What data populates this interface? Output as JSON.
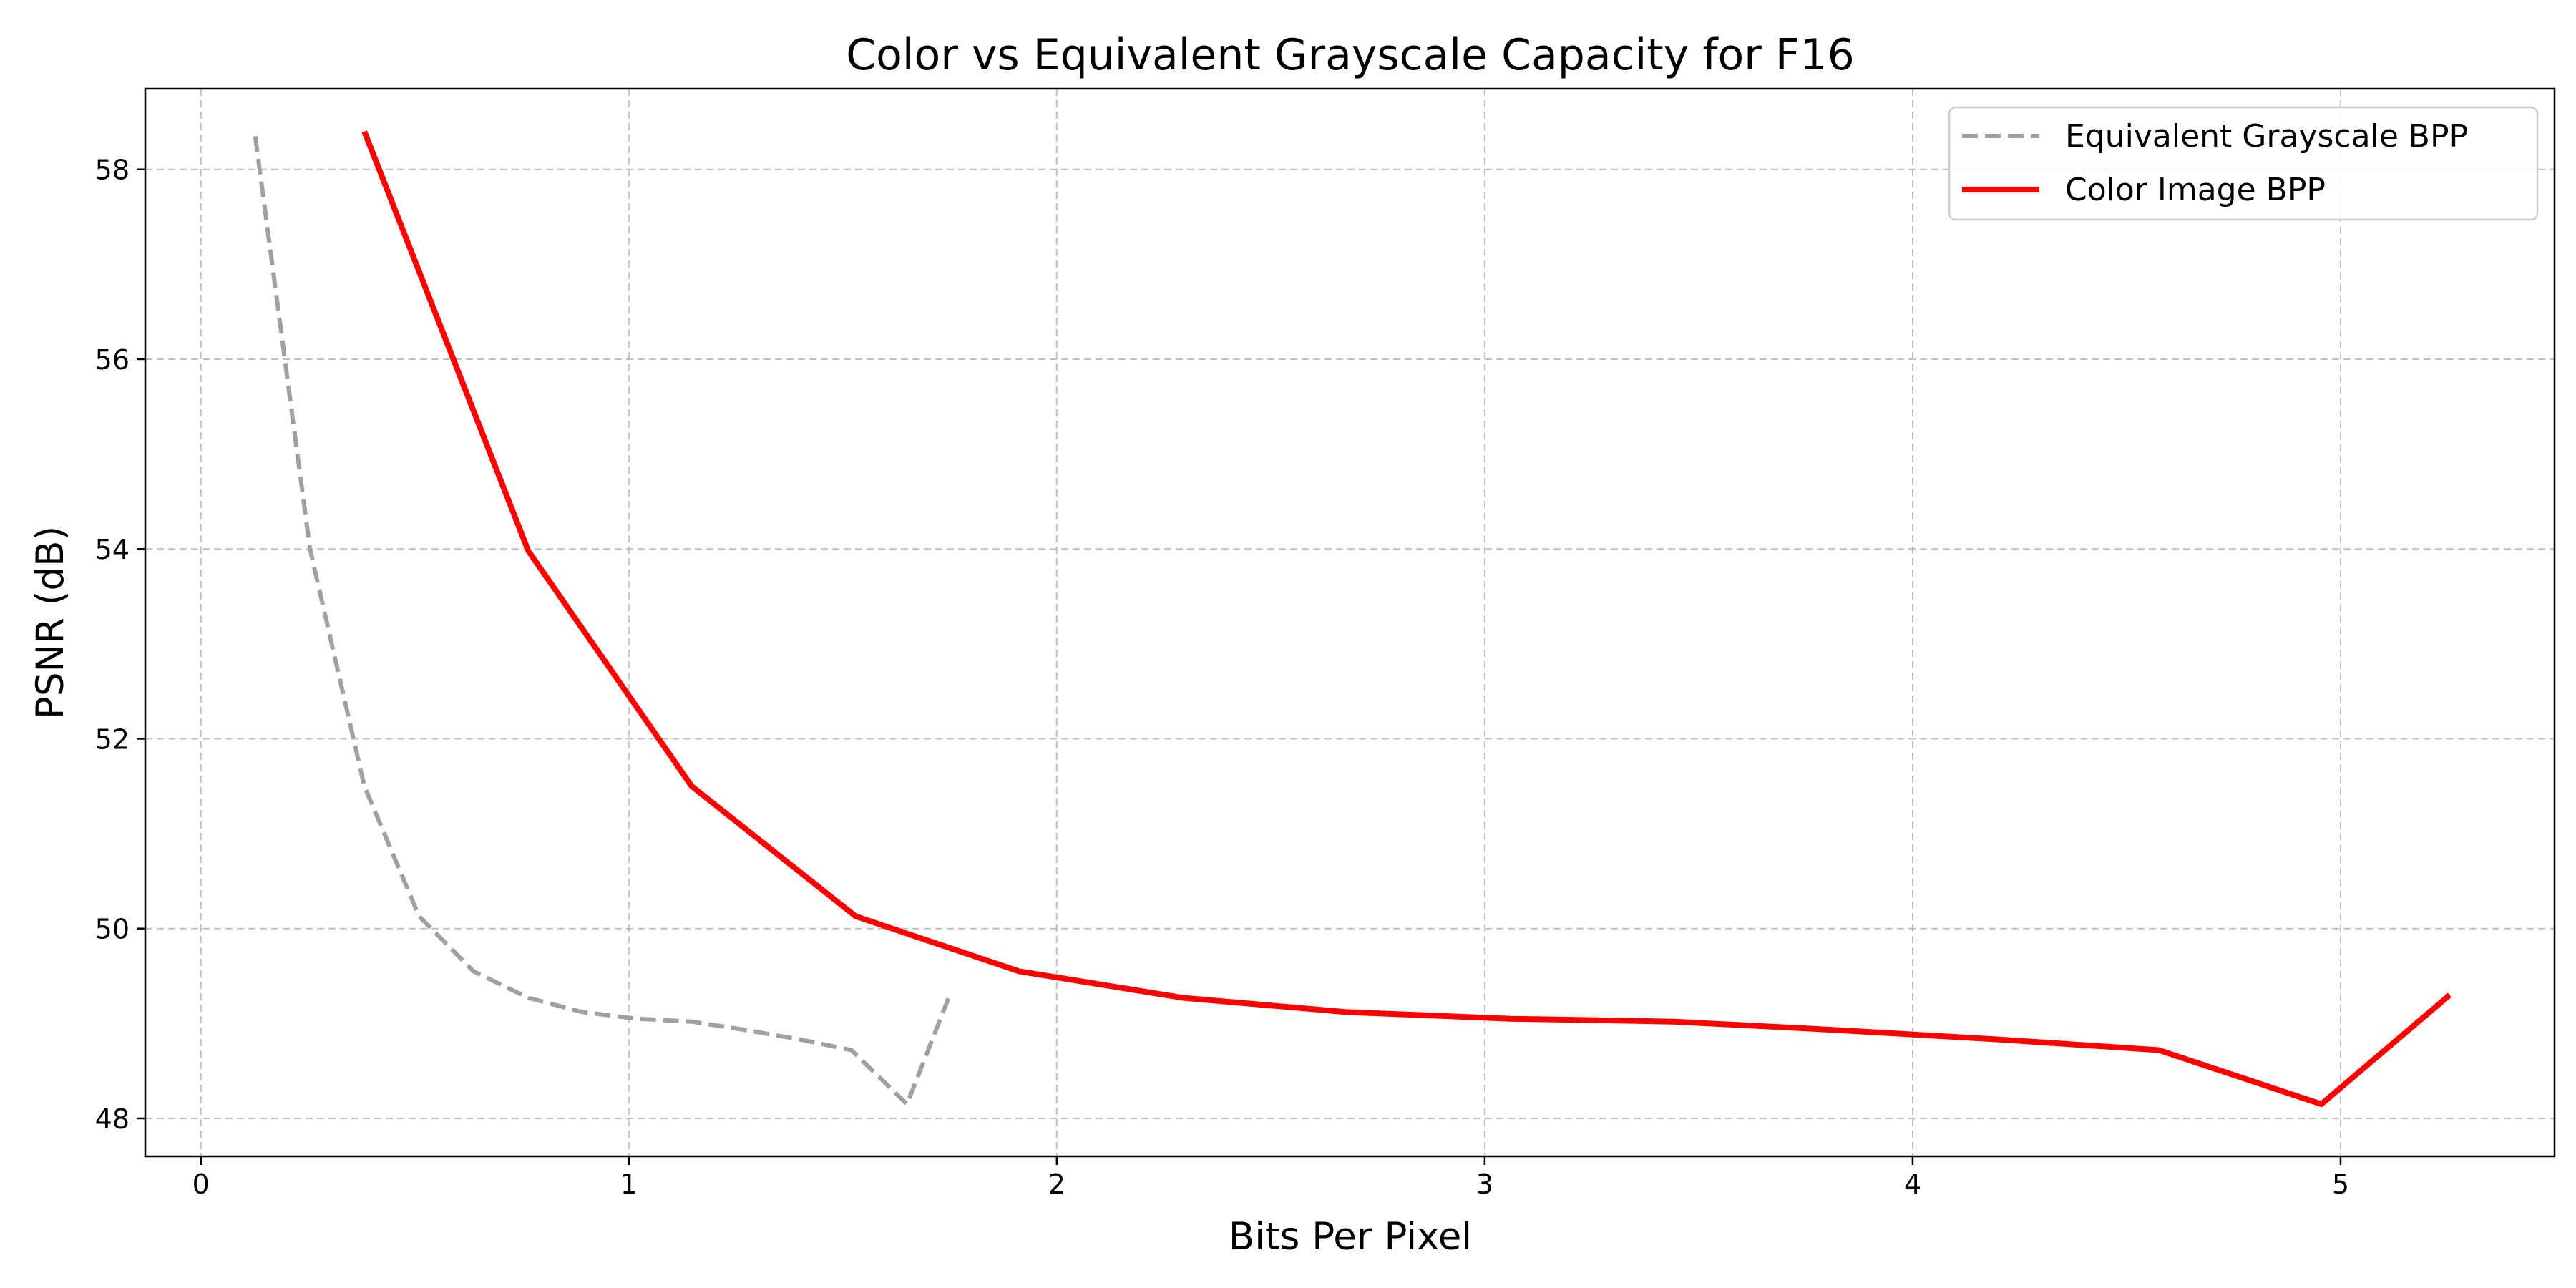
{
  "chart_data": {
    "type": "line",
    "title": "Color vs Equivalent Grayscale Capacity for F16",
    "xlabel": "Bits Per Pixel",
    "ylabel": "PSNR (dB)",
    "xlim": [
      -0.13,
      5.5
    ],
    "ylim": [
      47.6,
      58.85
    ],
    "x_ticks": [
      0,
      1,
      2,
      3,
      4,
      5
    ],
    "y_ticks": [
      48,
      50,
      52,
      54,
      56,
      58
    ],
    "grid": true,
    "legend_position": "top-right",
    "series": [
      {
        "name": "Equivalent Grayscale BPP",
        "color": "#a0a0a0",
        "style": "dashed",
        "points": [
          [
            0.127,
            58.35
          ],
          [
            0.255,
            54.0
          ],
          [
            0.382,
            51.5
          ],
          [
            0.51,
            50.13
          ],
          [
            0.637,
            49.55
          ],
          [
            0.765,
            49.27
          ],
          [
            0.892,
            49.12
          ],
          [
            1.02,
            49.05
          ],
          [
            1.147,
            49.02
          ],
          [
            1.275,
            48.93
          ],
          [
            1.402,
            48.83
          ],
          [
            1.52,
            48.72
          ],
          [
            1.65,
            48.15
          ],
          [
            1.75,
            49.3
          ]
        ]
      },
      {
        "name": "Color Image BPP",
        "color": "#ff0000",
        "style": "solid",
        "points": [
          [
            0.382,
            58.4
          ],
          [
            0.765,
            53.98
          ],
          [
            1.147,
            51.5
          ],
          [
            1.53,
            50.13
          ],
          [
            1.912,
            49.55
          ],
          [
            2.295,
            49.27
          ],
          [
            2.677,
            49.12
          ],
          [
            3.06,
            49.05
          ],
          [
            3.442,
            49.02
          ],
          [
            3.825,
            48.93
          ],
          [
            4.207,
            48.83
          ],
          [
            4.575,
            48.72
          ],
          [
            4.955,
            48.15
          ],
          [
            5.255,
            49.3
          ]
        ]
      }
    ]
  }
}
